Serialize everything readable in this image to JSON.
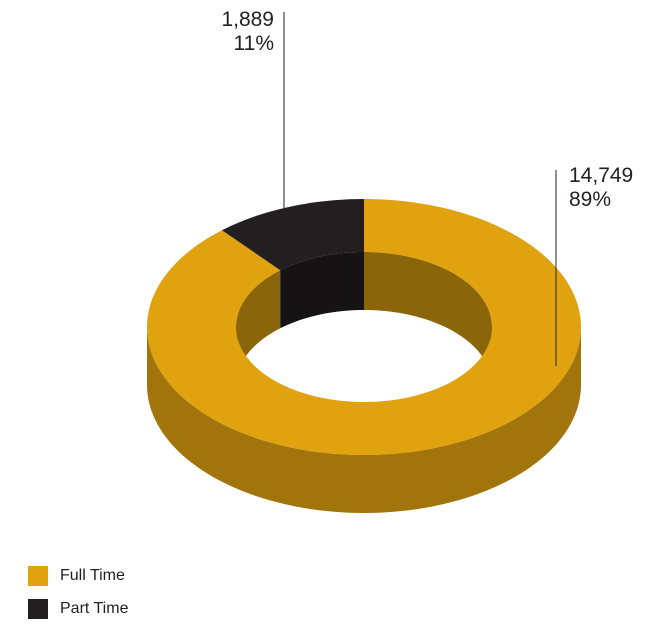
{
  "chart_data": {
    "type": "pie",
    "variant": "3d-donut",
    "series": [
      {
        "name": "Full Time",
        "value": 14749,
        "value_label": "14,749",
        "percent_label": "89%",
        "color": "#e0a30f"
      },
      {
        "name": "Part Time",
        "value": 1889,
        "value_label": "1,889",
        "percent_label": "11%",
        "color": "#231f20"
      }
    ],
    "legend_position": "bottom-left"
  }
}
